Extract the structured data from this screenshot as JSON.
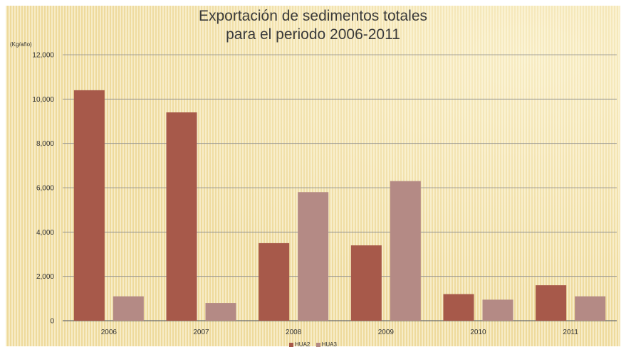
{
  "chart_data": {
    "type": "bar",
    "title_lines": [
      "Exportación de sedimentos totales",
      "para el periodo 2006-2011"
    ],
    "ylabel": "(Kg/año)",
    "xlabel": "",
    "categories": [
      "2006",
      "2007",
      "2008",
      "2009",
      "2010",
      "2011"
    ],
    "ylim": [
      0,
      12000
    ],
    "yticks": [
      0,
      2000,
      4000,
      6000,
      8000,
      10000,
      12000
    ],
    "ytick_labels": [
      "0",
      "2,000",
      "4,000",
      "6,000",
      "8,000",
      "10,000",
      "12,000"
    ],
    "grid": true,
    "legend_position": "bottom",
    "series": [
      {
        "name": "HUA2",
        "color": "#a7594a",
        "values": [
          10400,
          9400,
          3500,
          3400,
          1200,
          1600
        ]
      },
      {
        "name": "HUA3",
        "color": "#b48a85",
        "values": [
          1100,
          800,
          5800,
          6300,
          950,
          1100
        ]
      }
    ]
  }
}
